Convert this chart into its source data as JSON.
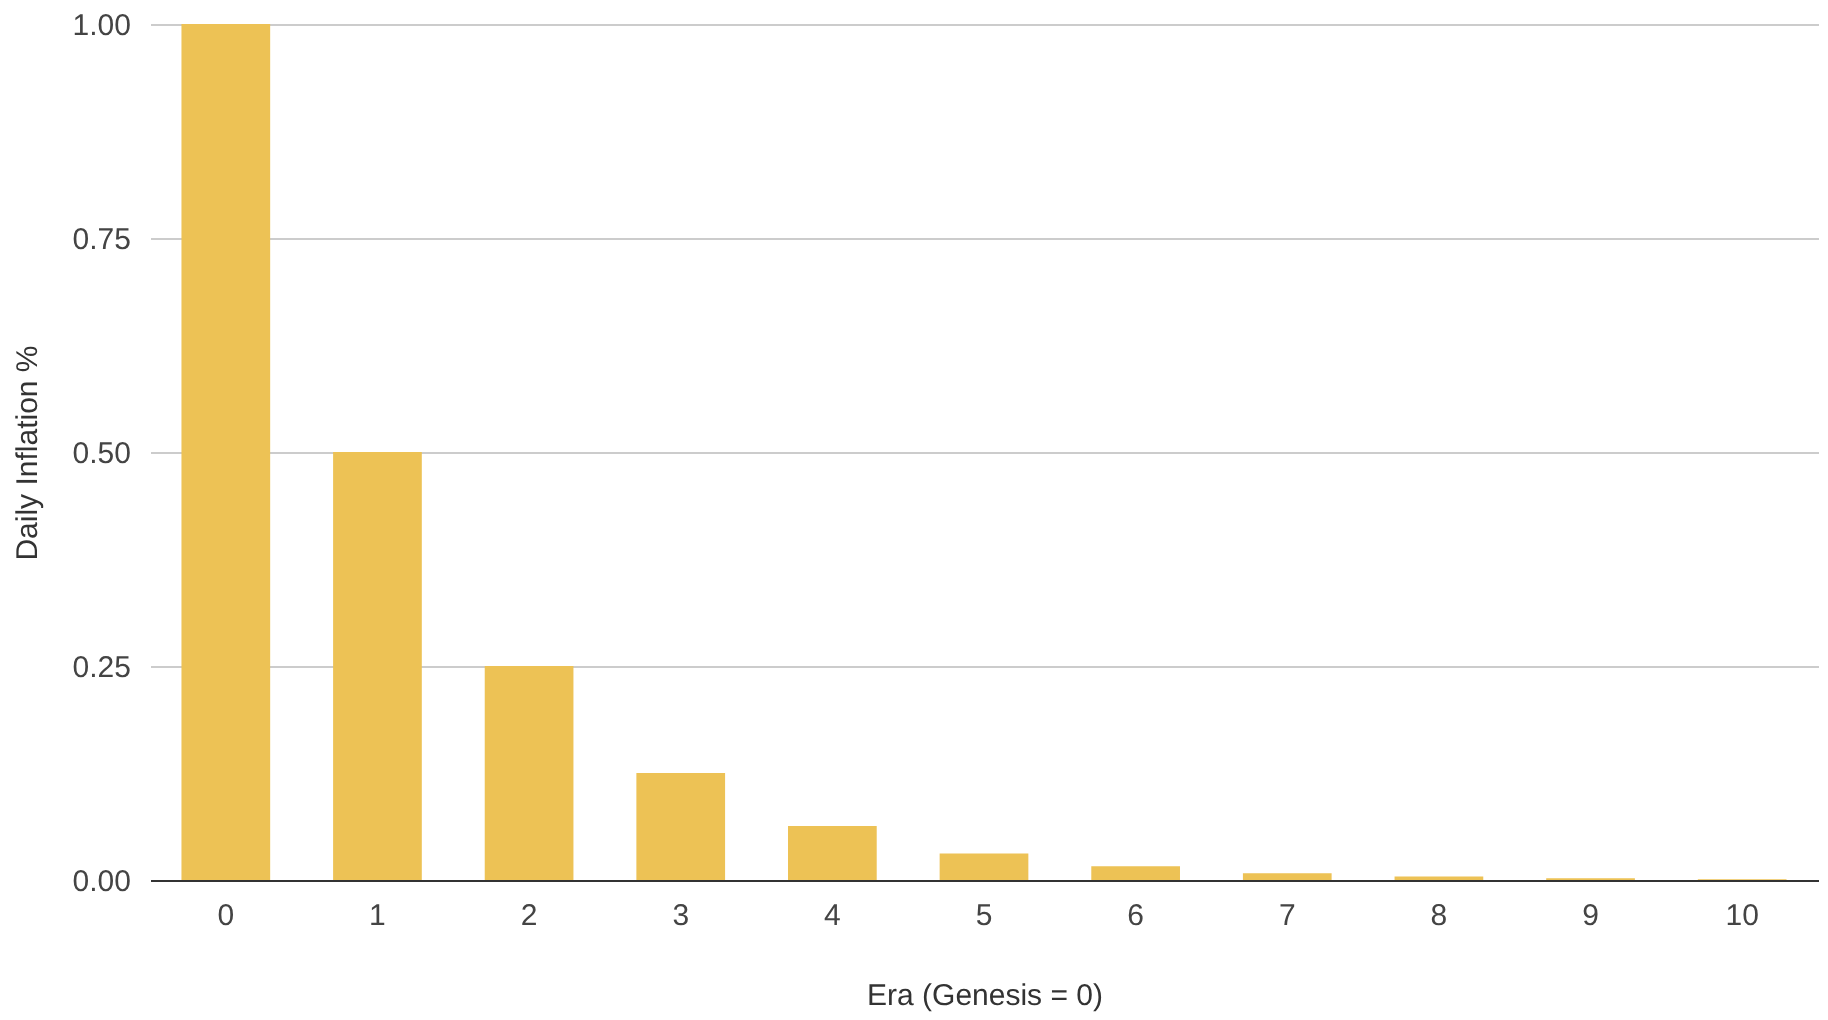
{
  "chart_data": {
    "type": "bar",
    "xlabel": "Era (Genesis = 0)",
    "ylabel": "Daily Inflation %",
    "categories": [
      "0",
      "1",
      "2",
      "3",
      "4",
      "5",
      "6",
      "7",
      "8",
      "9",
      "10"
    ],
    "values": [
      1.0,
      0.5,
      0.25,
      0.125,
      0.063,
      0.031,
      0.016,
      0.008,
      0.004,
      0.002,
      0.001
    ],
    "color": "#edc255",
    "ylim": [
      0,
      1
    ],
    "yticks": [
      {
        "value": 0,
        "label": "0.00"
      },
      {
        "value": 0.25,
        "label": "0.25"
      },
      {
        "value": 0.5,
        "label": "0.50"
      },
      {
        "value": 0.75,
        "label": "0.75"
      },
      {
        "value": 1,
        "label": "1.00"
      }
    ],
    "grid": "y"
  }
}
